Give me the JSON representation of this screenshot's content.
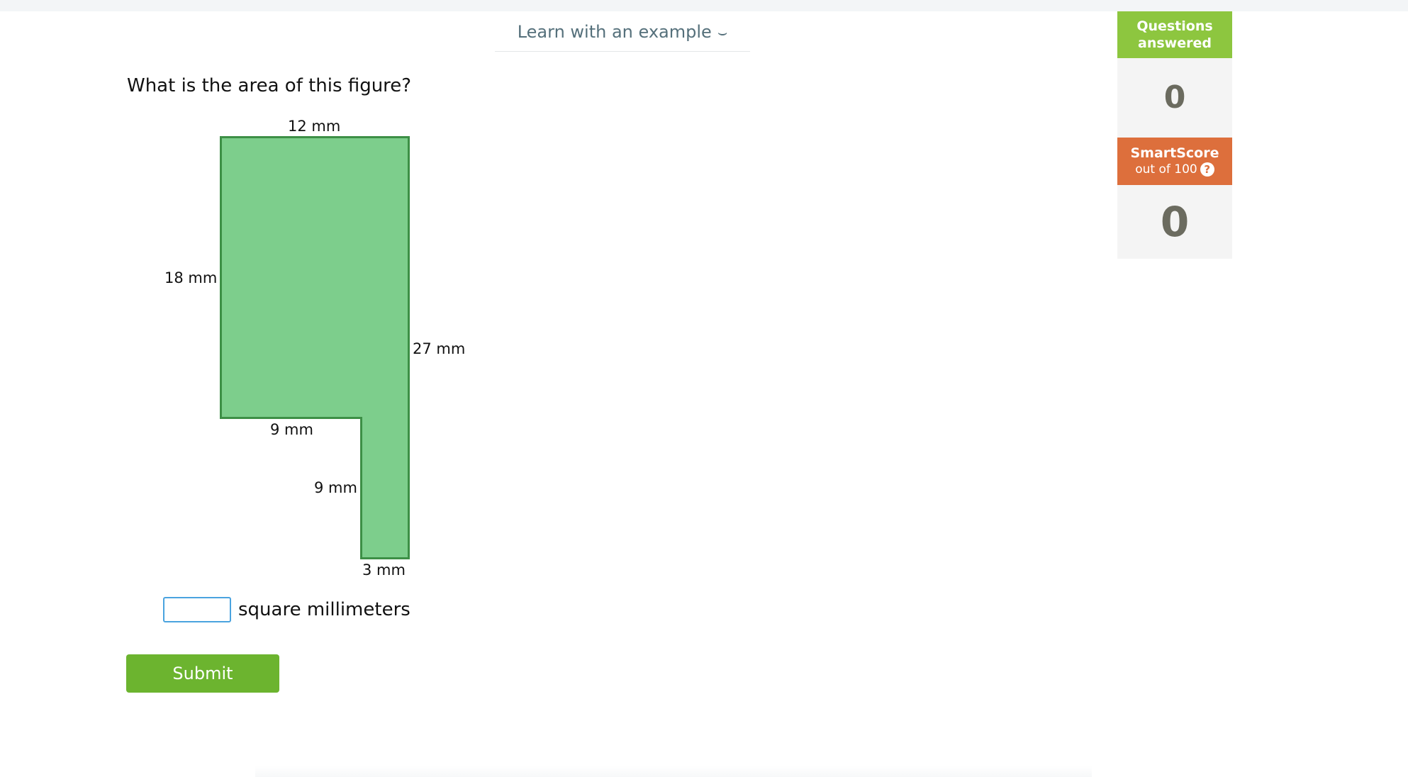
{
  "learn_example": {
    "label": "Learn with an example",
    "chevron_icon": "chevron-down-icon"
  },
  "question": {
    "text": "What is the area of this figure?"
  },
  "figure": {
    "fill_color": "#7dce8c",
    "stroke_color": "#3d8f46",
    "labels": {
      "top": "12 mm",
      "left": "18 mm",
      "right": "27 mm",
      "inner_horizontal": "9 mm",
      "inner_vertical": "9 mm",
      "bottom": "3 mm"
    }
  },
  "answer": {
    "value": "",
    "unit": "square millimeters"
  },
  "submit": {
    "label": "Submit",
    "color": "#6cb42f"
  },
  "sidebar": {
    "questions_answered": {
      "label": "Questions answered",
      "value": "0",
      "color": "#8dc63f"
    },
    "smartscore": {
      "title": "SmartScore",
      "subtitle": "out of 100",
      "help_icon": "question-circle-icon",
      "value": "0",
      "color": "#dd6f3c"
    }
  }
}
